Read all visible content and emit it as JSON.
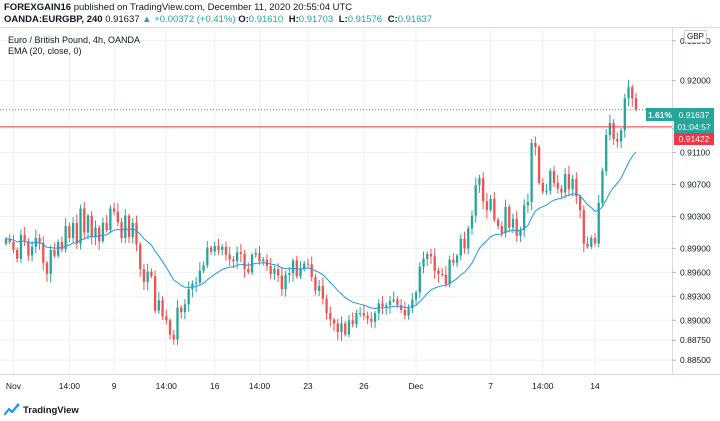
{
  "header": {
    "author": "FOREXGAIN16",
    "published_text": "published on TradingView.com, December 11, 2020 20:55:04 UTC",
    "symbol": "OANDA:EURGBP, 240",
    "last": "0.91637",
    "change": "+0.00372 (+0.41%)",
    "open_label": "O:",
    "open": "0.91610",
    "high_label": "H:",
    "high": "0.91703",
    "low_label": "L:",
    "low": "0.91576",
    "close_label": "C:",
    "close": "0.91637"
  },
  "legend": {
    "title": "Euro / British Pound, 4h, OANDA",
    "indicator": "EMA (20, close, 0)"
  },
  "currency_badge": "GBP",
  "price_labels": {
    "change_pct": "1.61%",
    "last_price": "0.91637",
    "countdown": "01:04:57",
    "line_price": "0.91422"
  },
  "footer": {
    "brand": "TradingView"
  },
  "colors": {
    "up": "#26a69a",
    "down": "#ef5350",
    "ema": "#2196f3",
    "horizontal_line": "#f23645",
    "text": "#131722",
    "grid": "#eef0f3"
  },
  "chart_data": {
    "type": "candlestick",
    "symbol": "OANDA:EURGBP",
    "timeframe": "4h",
    "ylim": [
      0.88327,
      0.9266
    ],
    "y_ticks": [
      "0.92500",
      "0.92000",
      "0.91400",
      "0.91100",
      "0.90700",
      "0.90300",
      "0.89900",
      "0.89600",
      "0.89300",
      "0.89000",
      "0.88750",
      "0.88500"
    ],
    "x_ticks": [
      "Nov",
      "14:00",
      "9",
      "14:00",
      "16",
      "14:00",
      "23",
      "26",
      "Dec",
      "7",
      "14:00",
      "14"
    ],
    "horizontal_line": 0.91422,
    "last_price": 0.91637,
    "ema_period": 20,
    "close": [
      0.9002,
      0.8998,
      0.8988,
      0.8977,
      0.9007,
      0.8999,
      0.8981,
      0.8992,
      0.9003,
      0.8997,
      0.8972,
      0.8958,
      0.8988,
      0.8981,
      0.8998,
      0.8989,
      0.9018,
      0.9003,
      0.9022,
      0.8996,
      0.904,
      0.901,
      0.9031,
      0.9004,
      0.9016,
      0.8999,
      0.9022,
      0.9013,
      0.904,
      0.9036,
      0.9023,
      0.9003,
      0.9031,
      0.9004,
      0.9022,
      0.8995,
      0.8964,
      0.8948,
      0.8961,
      0.8955,
      0.8912,
      0.8925,
      0.8905,
      0.89,
      0.8882,
      0.8876,
      0.8916,
      0.891,
      0.892,
      0.8939,
      0.8946,
      0.8947,
      0.8962,
      0.8969,
      0.8991,
      0.8986,
      0.8993,
      0.8988,
      0.8992,
      0.8982,
      0.8976,
      0.8974,
      0.8985,
      0.8983,
      0.8964,
      0.896,
      0.8982,
      0.8984,
      0.8974,
      0.8976,
      0.8968,
      0.8958,
      0.8964,
      0.8956,
      0.8939,
      0.8957,
      0.8959,
      0.8975,
      0.8955,
      0.8965,
      0.8971,
      0.897,
      0.8954,
      0.8937,
      0.8943,
      0.8927,
      0.8909,
      0.8901,
      0.8896,
      0.8885,
      0.8896,
      0.8882,
      0.89,
      0.8895,
      0.8909,
      0.8909,
      0.8906,
      0.8902,
      0.8898,
      0.8909,
      0.8921,
      0.8917,
      0.8919,
      0.8924,
      0.8926,
      0.8919,
      0.8913,
      0.8906,
      0.8915,
      0.8926,
      0.8935,
      0.8967,
      0.8977,
      0.8983,
      0.898,
      0.8962,
      0.8958,
      0.8957,
      0.8945,
      0.8976,
      0.8972,
      0.8981,
      0.9002,
      0.899,
      0.9015,
      0.9031,
      0.9069,
      0.9078,
      0.9049,
      0.9038,
      0.9052,
      0.9026,
      0.9018,
      0.9009,
      0.9042,
      0.9016,
      0.9027,
      0.9006,
      0.9013,
      0.9044,
      0.9048,
      0.9122,
      0.9117,
      0.9072,
      0.9061,
      0.9062,
      0.9087,
      0.9072,
      0.9065,
      0.906,
      0.9083,
      0.9064,
      0.9077,
      0.9055,
      0.9038,
      0.8996,
      0.8992,
      0.9003,
      0.8996,
      0.9047,
      0.9087,
      0.9132,
      0.9147,
      0.9127,
      0.9124,
      0.9138,
      0.9178,
      0.9192,
      0.9178,
      0.9164
    ]
  }
}
